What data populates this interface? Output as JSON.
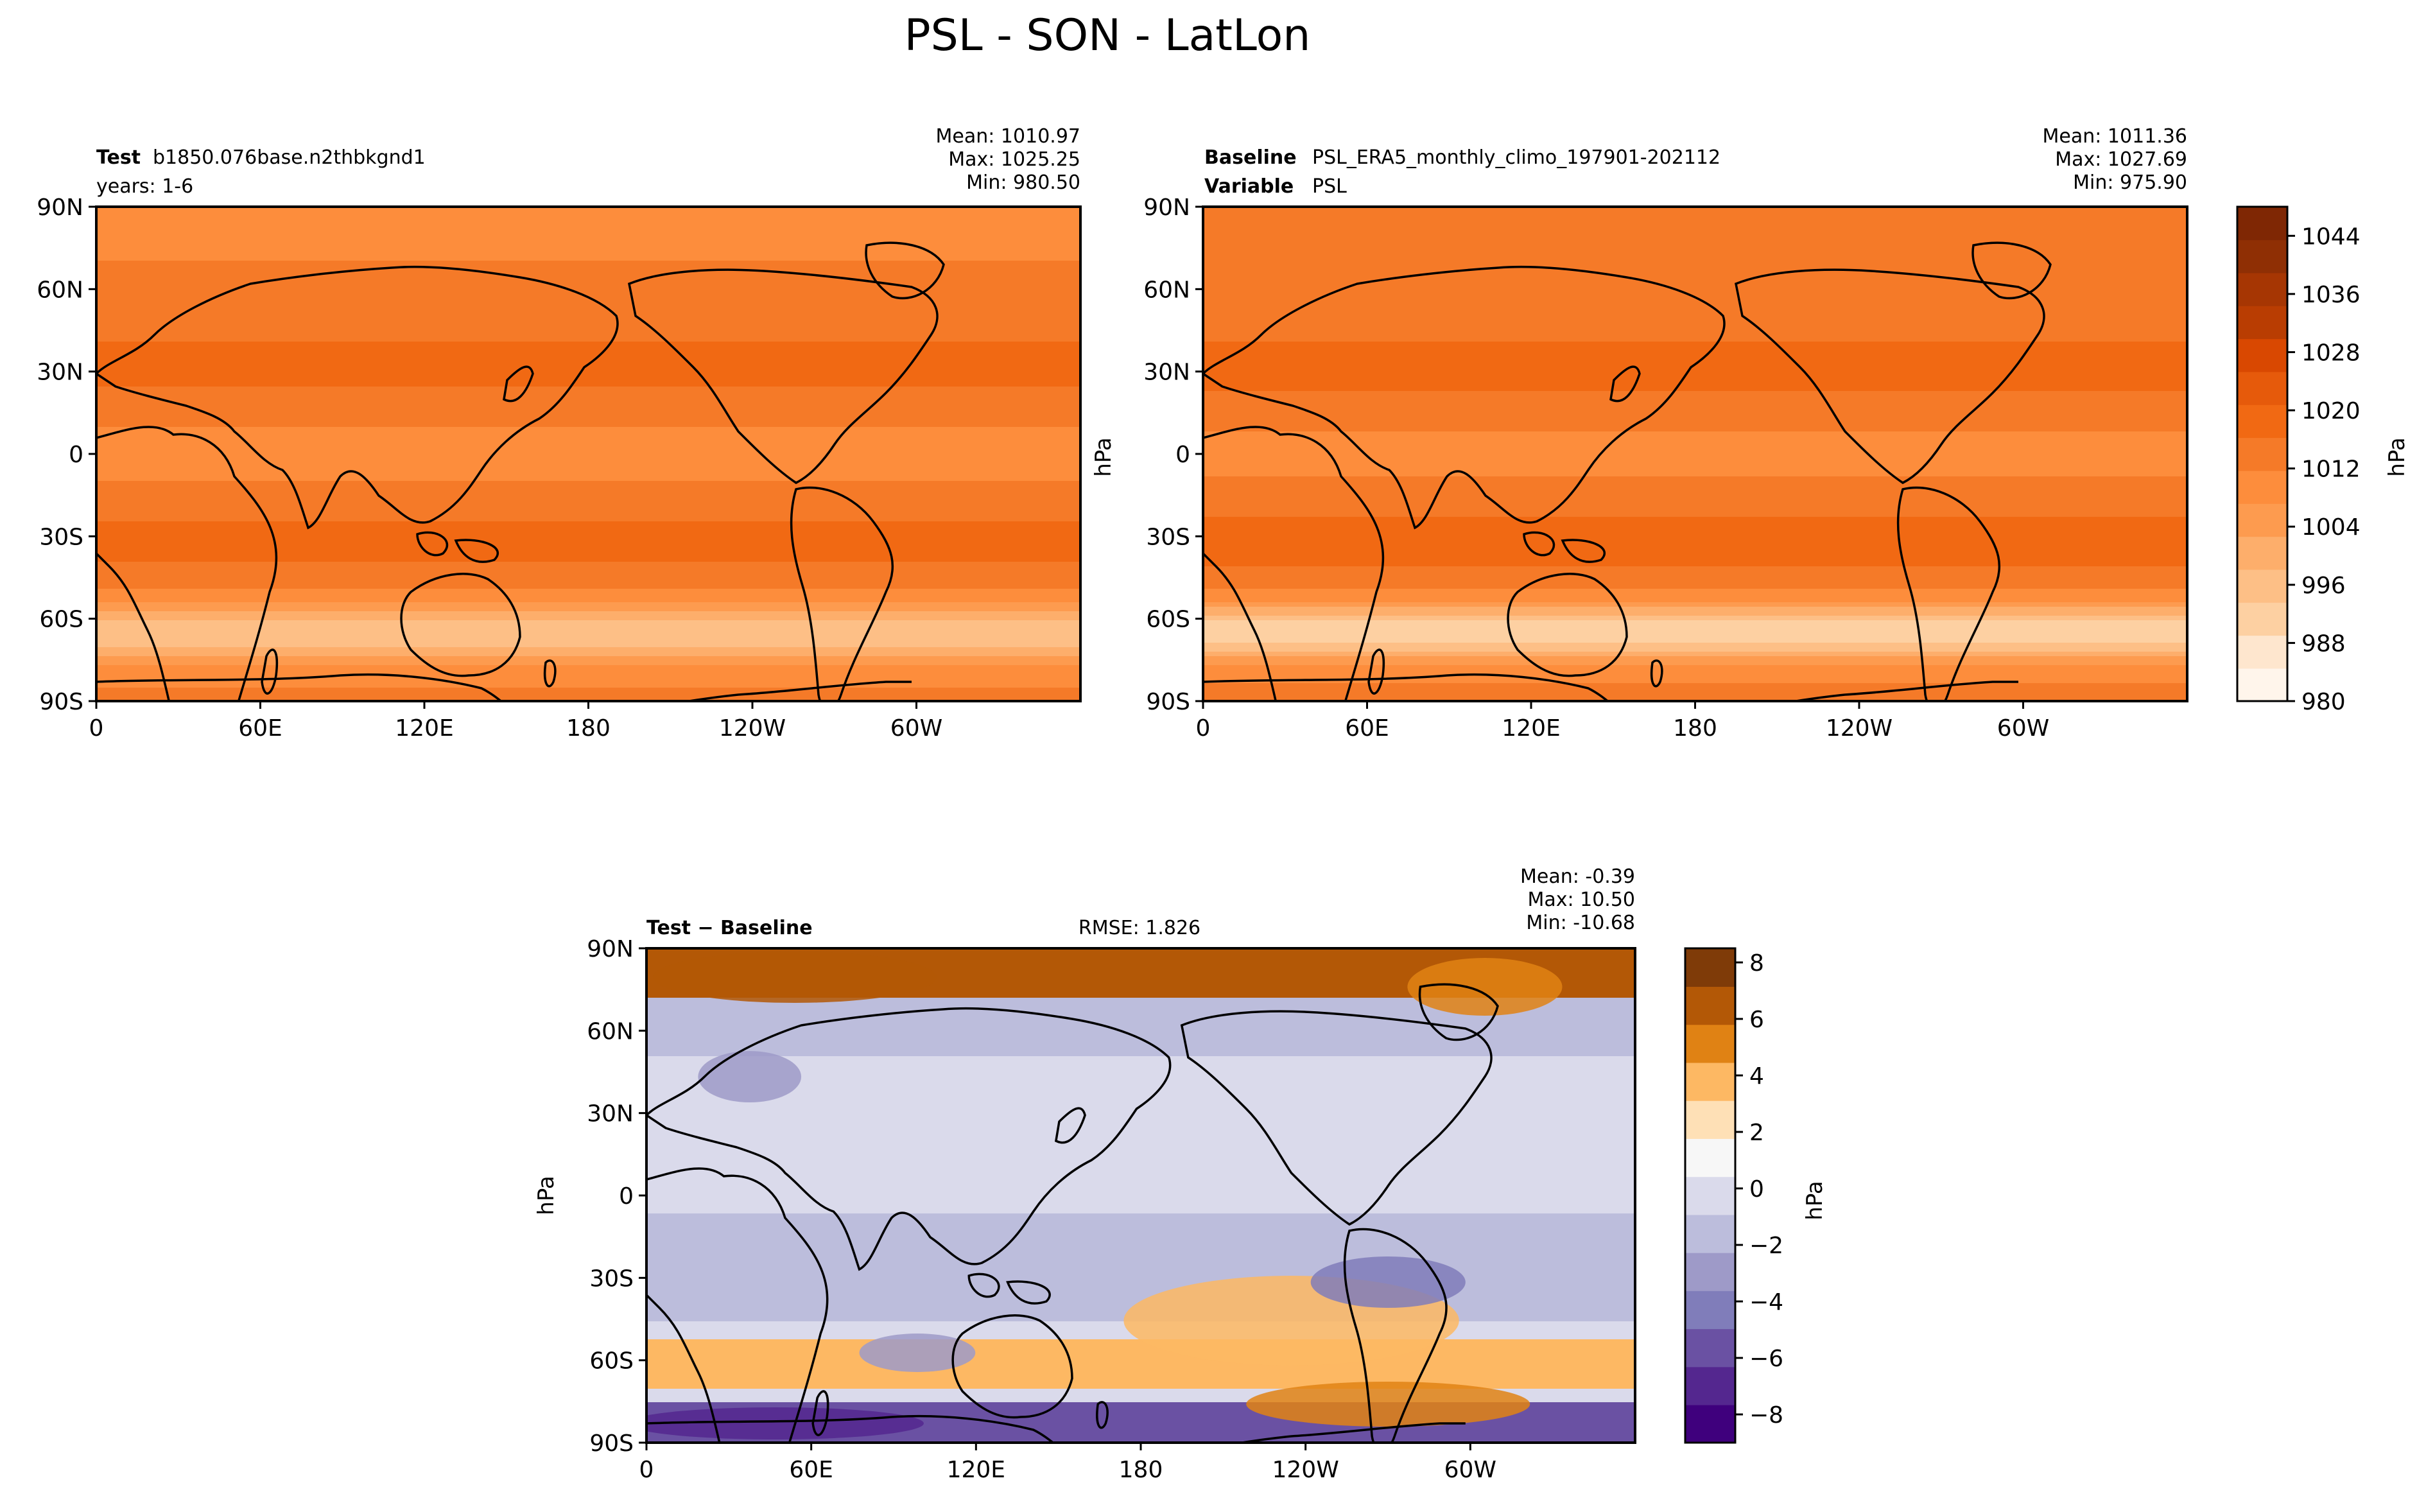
{
  "figure_title": "PSL - SON - LatLon",
  "colors": {
    "seq": [
      "#fff5eb",
      "#fee6ce",
      "#fdd0a2",
      "#fdbf86",
      "#fdae6b",
      "#fd9b4f",
      "#fd8d3c",
      "#f57a28",
      "#f16913",
      "#e65a0b",
      "#d94801",
      "#b93d02",
      "#a63603",
      "#8f2f04",
      "#7f2704"
    ],
    "div": [
      "#3f007d",
      "#54278f",
      "#6a51a3",
      "#807dba",
      "#9e9ac8",
      "#bcbddc",
      "#dadaeb",
      "#f7f7f7",
      "#fee0b6",
      "#fdb863",
      "#e08214",
      "#b35806",
      "#7f3b08"
    ],
    "coast": "#000000"
  },
  "chart_data": [
    {
      "type": "map",
      "name": "test",
      "left_label": "Test",
      "left_value": "b1850.076base.n2thbkgnd1",
      "left_line2": "years: 1-6",
      "stats": {
        "mean": "Mean: 1010.97",
        "max": "Max: 1025.25",
        "min": "Min: 980.50"
      },
      "lat_ticks": [
        "90N",
        "60N",
        "30N",
        "0",
        "30S",
        "60S",
        "90S"
      ],
      "lon_ticks": [
        "0",
        "60E",
        "120E",
        "180",
        "120W",
        "60W"
      ],
      "field": {
        "base": 1012,
        "sub": 6,
        "wave": 2,
        "polar": 18,
        "arctic": -2
      }
    },
    {
      "type": "map",
      "name": "baseline",
      "left_label": "Baseline",
      "left_value": "PSL_ERA5_monthly_climo_197901-202112",
      "left_label2": "Variable",
      "left_value2": "PSL",
      "ylabel": "hPa",
      "stats": {
        "mean": "Mean: 1011.36",
        "max": "Max: 1027.69",
        "min": "Min: 975.90"
      },
      "lat_ticks": [
        "90N",
        "60N",
        "30N",
        "0",
        "30S",
        "60S",
        "90S"
      ],
      "lon_ticks": [
        "0",
        "60E",
        "120E",
        "180",
        "120W",
        "60W"
      ],
      "field": {
        "base": 1012.5,
        "sub": 6,
        "wave": 2,
        "polar": 22,
        "arctic": 0
      }
    },
    {
      "type": "map",
      "name": "difference",
      "left_label": "Test − Baseline",
      "center_text": "RMSE: 1.826",
      "ylabel": "hPa",
      "stats": {
        "mean": "Mean: -0.39",
        "max": "Max: 10.50",
        "min": "Min: -10.68"
      },
      "lat_ticks": [
        "90N",
        "60N",
        "30N",
        "0",
        "30S",
        "60S",
        "90S"
      ],
      "lon_ticks": [
        "0",
        "60E",
        "120E",
        "180",
        "120W",
        "60W"
      ],
      "field": {
        "arctic": 6,
        "s40": -1.2,
        "s60": 4,
        "ant": -6
      }
    }
  ],
  "colorbars": [
    {
      "name": "psl",
      "label": "hPa",
      "min": 980,
      "max": 1048,
      "ticks": [
        "980",
        "988",
        "996",
        "1004",
        "1012",
        "1020",
        "1028",
        "1036",
        "1044"
      ],
      "tick_values": [
        980,
        988,
        996,
        1004,
        1012,
        1020,
        1028,
        1036,
        1044
      ]
    },
    {
      "name": "diff",
      "label": "hPa",
      "min": -9,
      "max": 8.5,
      "ticks": [
        "−8",
        "−6",
        "−4",
        "−2",
        "0",
        "2",
        "4",
        "6",
        "8"
      ],
      "tick_values": [
        -8,
        -6,
        -4,
        -2,
        0,
        2,
        4,
        6,
        8
      ]
    }
  ]
}
